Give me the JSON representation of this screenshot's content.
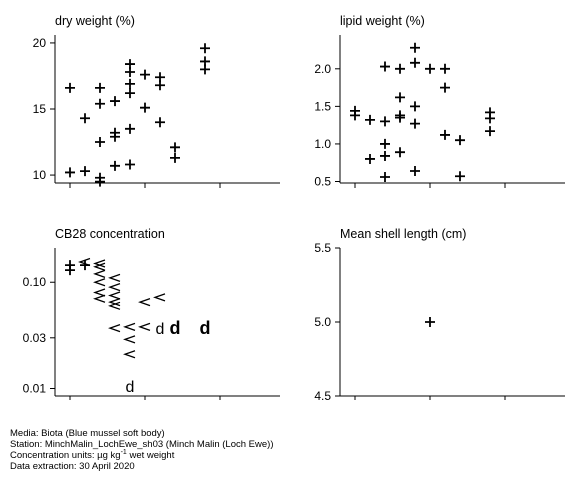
{
  "chart_data": [
    {
      "type": "scatter",
      "title": "dry weight (%)",
      "xlim": [
        2004,
        2019
      ],
      "ylim": [
        9.4,
        20.6
      ],
      "xticks": [
        2005,
        2010,
        2015
      ],
      "yticks": [
        10,
        15,
        20
      ],
      "show_xtick_labels": false,
      "points": [
        {
          "x": 2005,
          "y": 16.6,
          "m": "+"
        },
        {
          "x": 2005,
          "y": 10.2,
          "m": "+"
        },
        {
          "x": 2006,
          "y": 14.3,
          "m": "+"
        },
        {
          "x": 2006,
          "y": 10.3,
          "m": "+"
        },
        {
          "x": 2007,
          "y": 16.6,
          "m": "+"
        },
        {
          "x": 2007,
          "y": 15.4,
          "m": "+"
        },
        {
          "x": 2007,
          "y": 12.5,
          "m": "+"
        },
        {
          "x": 2007,
          "y": 9.8,
          "m": "+"
        },
        {
          "x": 2007,
          "y": 9.5,
          "m": "+"
        },
        {
          "x": 2008,
          "y": 15.6,
          "m": "+"
        },
        {
          "x": 2008,
          "y": 13.2,
          "m": "+"
        },
        {
          "x": 2008,
          "y": 12.9,
          "m": "+"
        },
        {
          "x": 2008,
          "y": 10.7,
          "m": "+"
        },
        {
          "x": 2009,
          "y": 18.4,
          "m": "+"
        },
        {
          "x": 2009,
          "y": 17.8,
          "m": "+"
        },
        {
          "x": 2009,
          "y": 16.9,
          "m": "+"
        },
        {
          "x": 2009,
          "y": 16.2,
          "m": "+"
        },
        {
          "x": 2009,
          "y": 13.5,
          "m": "+"
        },
        {
          "x": 2009,
          "y": 10.8,
          "m": "+"
        },
        {
          "x": 2010,
          "y": 17.6,
          "m": "+"
        },
        {
          "x": 2010,
          "y": 15.1,
          "m": "+"
        },
        {
          "x": 2011,
          "y": 17.4,
          "m": "+"
        },
        {
          "x": 2011,
          "y": 16.8,
          "m": "+"
        },
        {
          "x": 2011,
          "y": 14.0,
          "m": "+"
        },
        {
          "x": 2012,
          "y": 12.1,
          "m": "+"
        },
        {
          "x": 2012,
          "y": 11.3,
          "m": "+"
        },
        {
          "x": 2014,
          "y": 19.6,
          "m": "+"
        },
        {
          "x": 2014,
          "y": 18.6,
          "m": "+"
        },
        {
          "x": 2014,
          "y": 18.0,
          "m": "+"
        }
      ]
    },
    {
      "type": "scatter",
      "title": "lipid weight (%)",
      "xlim": [
        2004,
        2019
      ],
      "ylim": [
        0.48,
        2.45
      ],
      "xticks": [
        2005,
        2010,
        2015
      ],
      "yticks": [
        0.5,
        1.0,
        1.5,
        2.0
      ],
      "ytick_labels": [
        "0.5",
        "1.0",
        "1.5",
        "2.0"
      ],
      "show_xtick_labels": false,
      "points": [
        {
          "x": 2005,
          "y": 1.44,
          "m": "+"
        },
        {
          "x": 2005,
          "y": 1.38,
          "m": "+"
        },
        {
          "x": 2006,
          "y": 1.32,
          "m": "+"
        },
        {
          "x": 2006,
          "y": 0.8,
          "m": "+"
        },
        {
          "x": 2007,
          "y": 2.03,
          "m": "+"
        },
        {
          "x": 2007,
          "y": 1.3,
          "m": "+"
        },
        {
          "x": 2007,
          "y": 1.0,
          "m": "+"
        },
        {
          "x": 2007,
          "y": 0.84,
          "m": "+"
        },
        {
          "x": 2007,
          "y": 0.56,
          "m": "+"
        },
        {
          "x": 2008,
          "y": 2.0,
          "m": "+"
        },
        {
          "x": 2008,
          "y": 1.62,
          "m": "+"
        },
        {
          "x": 2008,
          "y": 1.38,
          "m": "+"
        },
        {
          "x": 2008,
          "y": 1.35,
          "m": "+"
        },
        {
          "x": 2008,
          "y": 0.89,
          "m": "+"
        },
        {
          "x": 2009,
          "y": 2.28,
          "m": "+"
        },
        {
          "x": 2009,
          "y": 2.08,
          "m": "+"
        },
        {
          "x": 2009,
          "y": 1.5,
          "m": "+"
        },
        {
          "x": 2009,
          "y": 1.27,
          "m": "+"
        },
        {
          "x": 2009,
          "y": 0.64,
          "m": "+"
        },
        {
          "x": 2010,
          "y": 2.0,
          "m": "+"
        },
        {
          "x": 2011,
          "y": 2.0,
          "m": "+"
        },
        {
          "x": 2011,
          "y": 1.75,
          "m": "+"
        },
        {
          "x": 2011,
          "y": 1.12,
          "m": "+"
        },
        {
          "x": 2012,
          "y": 1.05,
          "m": "+"
        },
        {
          "x": 2012,
          "y": 0.57,
          "m": "+"
        },
        {
          "x": 2014,
          "y": 1.42,
          "m": "+"
        },
        {
          "x": 2014,
          "y": 1.34,
          "m": "+"
        },
        {
          "x": 2014,
          "y": 1.17,
          "m": "+"
        }
      ]
    },
    {
      "type": "scatter",
      "title": "CB28 concentration",
      "yscale": "log",
      "xlim": [
        2004,
        2019
      ],
      "ylim": [
        0.0085,
        0.21
      ],
      "xticks": [
        2005,
        2010,
        2015
      ],
      "yticks": [
        0.01,
        0.03,
        0.1
      ],
      "ytick_labels": [
        "0.01",
        "0.03",
        "0.10"
      ],
      "show_xtick_labels": true,
      "points": [
        {
          "x": 2005,
          "y": 0.145,
          "m": "+"
        },
        {
          "x": 2005,
          "y": 0.13,
          "m": "+"
        },
        {
          "x": 2006,
          "y": 0.155,
          "m": "<"
        },
        {
          "x": 2006,
          "y": 0.145,
          "m": "+"
        },
        {
          "x": 2007,
          "y": 0.15,
          "m": "<"
        },
        {
          "x": 2007,
          "y": 0.14,
          "m": "<"
        },
        {
          "x": 2007,
          "y": 0.12,
          "m": "<"
        },
        {
          "x": 2007,
          "y": 0.1,
          "m": "<"
        },
        {
          "x": 2007,
          "y": 0.08,
          "m": "<"
        },
        {
          "x": 2007,
          "y": 0.07,
          "m": "<"
        },
        {
          "x": 2008,
          "y": 0.11,
          "m": "<"
        },
        {
          "x": 2008,
          "y": 0.09,
          "m": "<"
        },
        {
          "x": 2008,
          "y": 0.075,
          "m": "<"
        },
        {
          "x": 2008,
          "y": 0.065,
          "m": "<"
        },
        {
          "x": 2008,
          "y": 0.06,
          "m": "<"
        },
        {
          "x": 2008,
          "y": 0.037,
          "m": "<"
        },
        {
          "x": 2009,
          "y": 0.038,
          "m": "<"
        },
        {
          "x": 2009,
          "y": 0.029,
          "m": "<"
        },
        {
          "x": 2009,
          "y": 0.021,
          "m": "<"
        },
        {
          "x": 2009,
          "y": 0.0105,
          "m": "d"
        },
        {
          "x": 2010,
          "y": 0.065,
          "m": "<"
        },
        {
          "x": 2010,
          "y": 0.038,
          "m": "<"
        },
        {
          "x": 2011,
          "y": 0.072,
          "m": "<"
        },
        {
          "x": 2011,
          "y": 0.037,
          "m": "d"
        },
        {
          "x": 2012,
          "y": 0.037,
          "m": "d",
          "bold": true
        },
        {
          "x": 2014,
          "y": 0.037,
          "m": "d",
          "bold": true
        }
      ]
    },
    {
      "type": "scatter",
      "title": "Mean shell length (cm)",
      "xlim": [
        2004,
        2019
      ],
      "ylim": [
        4.5,
        5.5
      ],
      "xticks": [
        2005,
        2010,
        2015
      ],
      "yticks": [
        4.5,
        5.0,
        5.5
      ],
      "ytick_labels": [
        "4.5",
        "5.0",
        "5.5"
      ],
      "show_xtick_labels": true,
      "points": [
        {
          "x": 2010,
          "y": 5.0,
          "m": "+"
        }
      ]
    }
  ],
  "footer": {
    "media": "Media: Biota (Blue mussel soft body)",
    "station": "Station: MinchMalin_LochEwe_sh03 (Minch Malin (Loch Ewe))",
    "units_prefix": "Concentration units:  µg kg",
    "units_sup": "-1",
    "units_suffix": " wet weight",
    "extraction": "Data extraction: 30 April 2020"
  }
}
